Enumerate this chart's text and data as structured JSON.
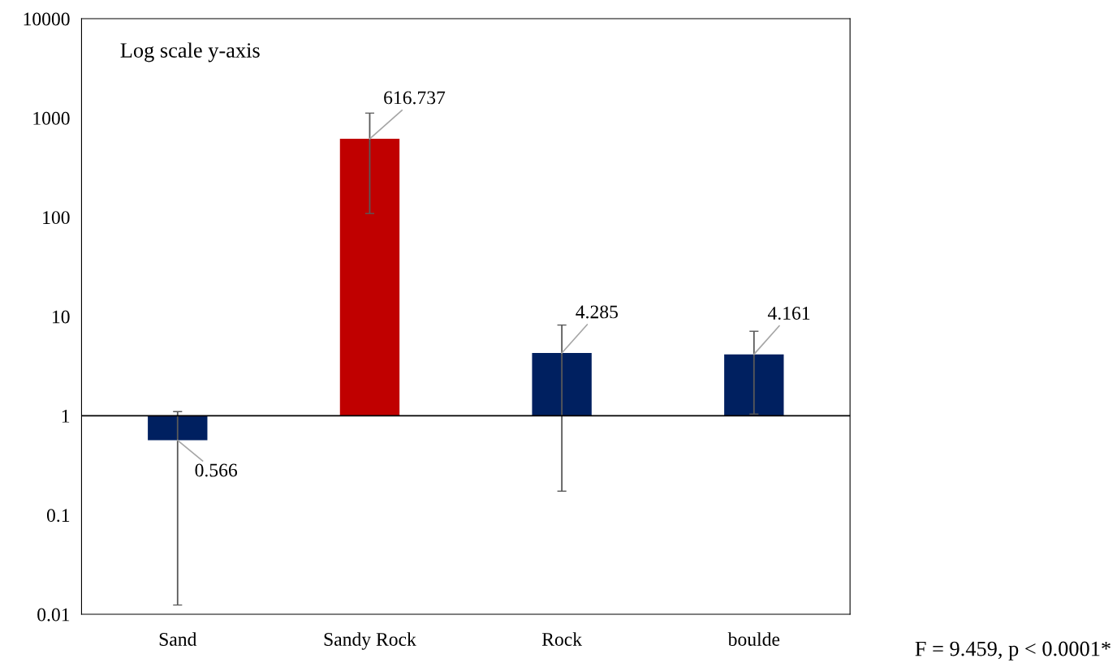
{
  "chart_data": {
    "type": "bar",
    "categories": [
      "Sand",
      "Sandy Rock",
      "Rock",
      "boulde"
    ],
    "base": [
      1,
      1,
      1,
      1
    ],
    "values": [
      -0.434,
      615.737,
      3.285,
      3.161
    ],
    "value_labels": [
      "0.566",
      "616.737",
      "4.285",
      "4.161"
    ],
    "colors": [
      "#002060",
      "#c00000",
      "#002060",
      "#002060"
    ],
    "errors": [
      [
        0.0124,
        1.1
      ],
      [
        109,
        1120
      ],
      [
        0.174,
        8.2
      ],
      [
        1.04,
        7.1
      ]
    ],
    "log": true,
    "ylim": [
      0.01,
      10000
    ],
    "yticks": [
      0.01,
      0.1,
      1,
      10,
      100,
      1000,
      10000
    ],
    "ref_lines": [
      {
        "axis": "y",
        "value": 1,
        "color": "#000000"
      }
    ],
    "annotations": [
      "Log scale y-axis",
      "F = 9.459, p < 0.0001*"
    ],
    "grid": false,
    "legend": false
  }
}
